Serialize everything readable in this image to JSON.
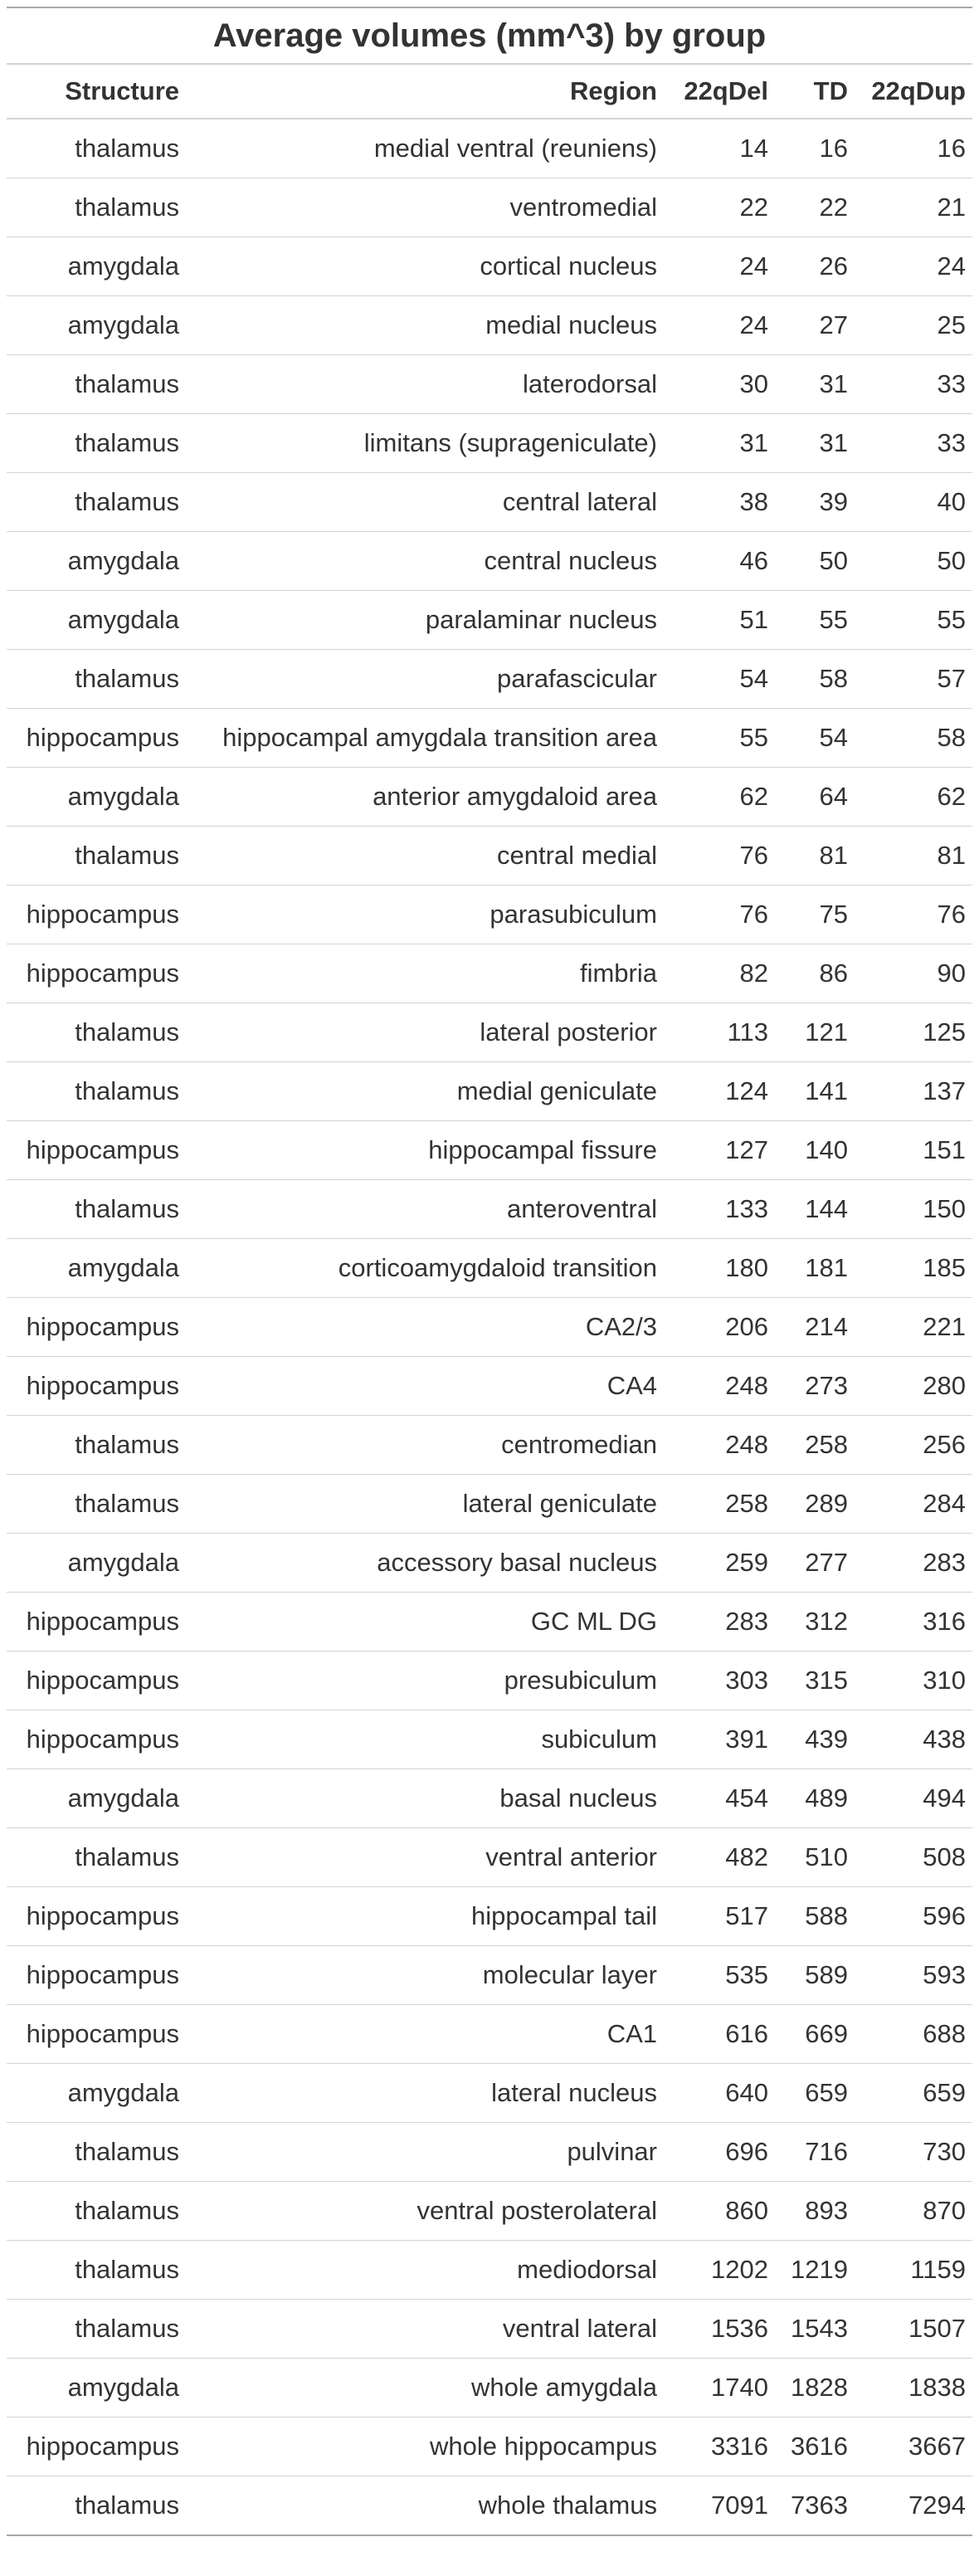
{
  "table": {
    "title": "Average volumes (mm^3) by group",
    "columns": [
      "Structure",
      "Region",
      "22qDel",
      "TD",
      "22qDup"
    ],
    "rows": [
      [
        "thalamus",
        "medial ventral (reuniens)",
        "14",
        "16",
        "16"
      ],
      [
        "thalamus",
        "ventromedial",
        "22",
        "22",
        "21"
      ],
      [
        "amygdala",
        "cortical nucleus",
        "24",
        "26",
        "24"
      ],
      [
        "amygdala",
        "medial nucleus",
        "24",
        "27",
        "25"
      ],
      [
        "thalamus",
        "laterodorsal",
        "30",
        "31",
        "33"
      ],
      [
        "thalamus",
        "limitans (suprageniculate)",
        "31",
        "31",
        "33"
      ],
      [
        "thalamus",
        "central lateral",
        "38",
        "39",
        "40"
      ],
      [
        "amygdala",
        "central nucleus",
        "46",
        "50",
        "50"
      ],
      [
        "amygdala",
        "paralaminar nucleus",
        "51",
        "55",
        "55"
      ],
      [
        "thalamus",
        "parafascicular",
        "54",
        "58",
        "57"
      ],
      [
        "hippocampus",
        "hippocampal amygdala transition area",
        "55",
        "54",
        "58"
      ],
      [
        "amygdala",
        "anterior amygdaloid area",
        "62",
        "64",
        "62"
      ],
      [
        "thalamus",
        "central medial",
        "76",
        "81",
        "81"
      ],
      [
        "hippocampus",
        "parasubiculum",
        "76",
        "75",
        "76"
      ],
      [
        "hippocampus",
        "fimbria",
        "82",
        "86",
        "90"
      ],
      [
        "thalamus",
        "lateral posterior",
        "113",
        "121",
        "125"
      ],
      [
        "thalamus",
        "medial geniculate",
        "124",
        "141",
        "137"
      ],
      [
        "hippocampus",
        "hippocampal fissure",
        "127",
        "140",
        "151"
      ],
      [
        "thalamus",
        "anteroventral",
        "133",
        "144",
        "150"
      ],
      [
        "amygdala",
        "corticoamygdaloid transition",
        "180",
        "181",
        "185"
      ],
      [
        "hippocampus",
        "CA2/3",
        "206",
        "214",
        "221"
      ],
      [
        "hippocampus",
        "CA4",
        "248",
        "273",
        "280"
      ],
      [
        "thalamus",
        "centromedian",
        "248",
        "258",
        "256"
      ],
      [
        "thalamus",
        "lateral geniculate",
        "258",
        "289",
        "284"
      ],
      [
        "amygdala",
        "accessory basal nucleus",
        "259",
        "277",
        "283"
      ],
      [
        "hippocampus",
        "GC ML DG",
        "283",
        "312",
        "316"
      ],
      [
        "hippocampus",
        "presubiculum",
        "303",
        "315",
        "310"
      ],
      [
        "hippocampus",
        "subiculum",
        "391",
        "439",
        "438"
      ],
      [
        "amygdala",
        "basal nucleus",
        "454",
        "489",
        "494"
      ],
      [
        "thalamus",
        "ventral anterior",
        "482",
        "510",
        "508"
      ],
      [
        "hippocampus",
        "hippocampal tail",
        "517",
        "588",
        "596"
      ],
      [
        "hippocampus",
        "molecular layer",
        "535",
        "589",
        "593"
      ],
      [
        "hippocampus",
        "CA1",
        "616",
        "669",
        "688"
      ],
      [
        "amygdala",
        "lateral nucleus",
        "640",
        "659",
        "659"
      ],
      [
        "thalamus",
        "pulvinar",
        "696",
        "716",
        "730"
      ],
      [
        "thalamus",
        "ventral posterolateral",
        "860",
        "893",
        "870"
      ],
      [
        "thalamus",
        "mediodorsal",
        "1202",
        "1219",
        "1159"
      ],
      [
        "thalamus",
        "ventral lateral",
        "1536",
        "1543",
        "1507"
      ],
      [
        "amygdala",
        "whole amygdala",
        "1740",
        "1828",
        "1838"
      ],
      [
        "hippocampus",
        "whole hippocampus",
        "3316",
        "3616",
        "3667"
      ],
      [
        "thalamus",
        "whole thalamus",
        "7091",
        "7363",
        "7294"
      ]
    ]
  }
}
